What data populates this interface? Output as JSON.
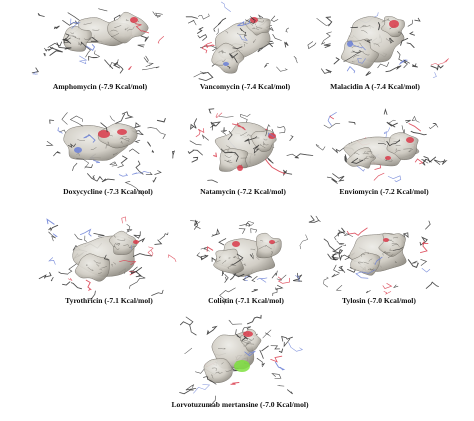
{
  "figure": {
    "panels": [
      {
        "caption": "Amphomycin (-7.9 Kcal/mol)"
      },
      {
        "caption": "Vancomycin (-7.4 Kcal/mol)"
      },
      {
        "caption": "Malacidin A (-7.4 Kcal/mol)"
      },
      {
        "caption": "Doxycycline (-7.3 Kcal/mol)"
      },
      {
        "caption": "Natamycin (-7.2 Kcal/mol)"
      },
      {
        "caption": "Enviomycin (-7.2 Kcal/mol)"
      },
      {
        "caption": "Tyrothricin (-7.1 Kcal/mol)"
      },
      {
        "caption": "Colistin (-7.1 Kcal/mol)"
      },
      {
        "caption": "Tylosin (-7.0 Kcal/mol)"
      },
      {
        "caption": "Lorvotuzumab mertansine (-7.0 Kcal/mol)"
      }
    ]
  },
  "colors": {
    "surface": "#cfcbc2",
    "surface_shade": "#8f8b82",
    "oxygen": "#d9394a",
    "nitrogen": "#6a7fd6",
    "halogen": "#7fe040",
    "stick": "#2b2b2b"
  }
}
